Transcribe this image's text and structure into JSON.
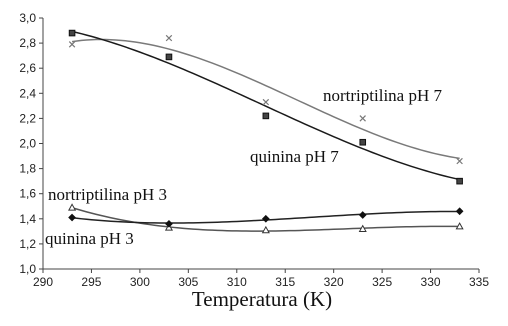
{
  "chart_data": {
    "type": "scatter",
    "xlabel": "Temperatura (K)",
    "ylabel": "",
    "xlim": [
      290,
      335
    ],
    "ylim": [
      1.0,
      3.0
    ],
    "x_ticks": [
      "290",
      "295",
      "300",
      "305",
      "310",
      "315",
      "320",
      "325",
      "330",
      "335"
    ],
    "y_ticks": [
      "1,0",
      "1,2",
      "1,4",
      "1,6",
      "1,8",
      "2,0",
      "2,2",
      "2,4",
      "2,6",
      "2,8",
      "3,0"
    ],
    "grid": false,
    "legend": "none",
    "series": [
      {
        "name": "nortriptilina pH 7",
        "marker": "x",
        "color": "#777777",
        "x": [
          293,
          303,
          313,
          323,
          333
        ],
        "y": [
          2.79,
          2.84,
          2.33,
          2.2,
          1.86
        ]
      },
      {
        "name": "quinina pH 7",
        "marker": "square",
        "color": "#222222",
        "x": [
          293,
          303,
          313,
          323,
          333
        ],
        "y": [
          2.88,
          2.69,
          2.22,
          2.01,
          1.7
        ]
      },
      {
        "name": "nortriptilina pH 3",
        "marker": "triangle",
        "color": "#555555",
        "x": [
          293,
          303,
          313,
          323,
          333
        ],
        "y": [
          1.49,
          1.33,
          1.31,
          1.32,
          1.34
        ]
      },
      {
        "name": "quinina pH 3",
        "marker": "diamond",
        "color": "#111111",
        "x": [
          293,
          303,
          313,
          323,
          333
        ],
        "y": [
          1.41,
          1.36,
          1.4,
          1.43,
          1.46
        ]
      }
    ]
  }
}
